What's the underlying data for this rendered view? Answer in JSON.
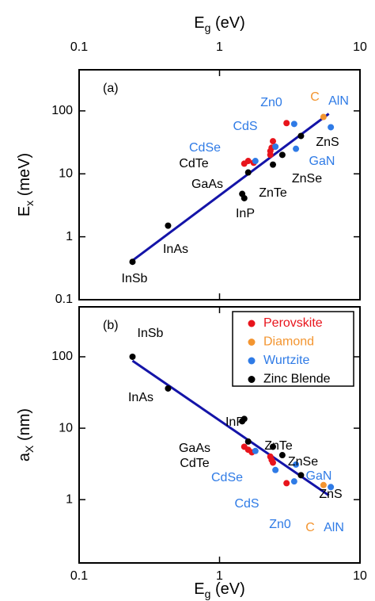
{
  "chart_data": [
    {
      "type": "scatter",
      "panel_label": "(a)",
      "xlabel": [
        "E",
        "g",
        " (eV)"
      ],
      "ylabel": [
        "E",
        "x",
        " (meV)"
      ],
      "log_x": true,
      "log_y": true,
      "xlim": [
        0.1,
        10
      ],
      "xticks": [
        0.1,
        1,
        10
      ],
      "ylim": [
        0.1,
        450
      ],
      "yticks": [
        0.1,
        1,
        10,
        100
      ],
      "series": [
        {
          "color": "#e8141c",
          "x": [
            1.5,
            1.6,
            1.75,
            2.3,
            2.3,
            2.35,
            2.4,
            3.0
          ],
          "values": [
            14.5,
            16,
            15,
            20,
            23,
            26,
            33,
            64
          ]
        },
        {
          "color": "#f39530",
          "x": [
            5.5
          ],
          "values": [
            80
          ]
        },
        {
          "color": "#2f7be6",
          "x": [
            1.8,
            2.5,
            3.4,
            3.5,
            6.2
          ],
          "values": [
            16,
            27,
            62,
            25,
            55
          ]
        },
        {
          "color": "#000000",
          "x": [
            0.24,
            0.43,
            1.45,
            1.5,
            1.6,
            2.4,
            2.8,
            3.8
          ],
          "values": [
            0.4,
            1.5,
            4.8,
            4.1,
            10.5,
            14,
            20,
            40
          ]
        }
      ],
      "fit": {
        "color": "#1414a8",
        "x": [
          0.24,
          6
        ],
        "values": [
          0.42,
          90
        ]
      },
      "annotations": [
        {
          "text": "InSb",
          "color": "#000000"
        },
        {
          "text": "InAs",
          "color": "#000000"
        },
        {
          "text": "InP",
          "color": "#000000"
        },
        {
          "text": "GaAs",
          "color": "#000000"
        },
        {
          "text": "CdTe",
          "color": "#000000"
        },
        {
          "text": "CdSe",
          "color": "#2f7be6"
        },
        {
          "text": "CdS",
          "color": "#2f7be6"
        },
        {
          "text": "Zn0",
          "color": "#2f7be6"
        },
        {
          "text": "C",
          "color": "#f39530"
        },
        {
          "text": "AlN",
          "color": "#2f7be6"
        },
        {
          "text": "ZnS",
          "color": "#000000"
        },
        {
          "text": "GaN",
          "color": "#2f7be6"
        },
        {
          "text": "ZnSe",
          "color": "#000000"
        },
        {
          "text": "ZnTe",
          "color": "#000000"
        }
      ]
    },
    {
      "type": "scatter",
      "panel_label": "(b)",
      "xlabel": [
        "E",
        "g",
        " (eV)"
      ],
      "ylabel": [
        "a",
        "X",
        " (nm)"
      ],
      "log_x": true,
      "log_y": true,
      "xlim": [
        0.1,
        10
      ],
      "xticks": [
        0.1,
        1,
        10
      ],
      "ylim": [
        0.13,
        500
      ],
      "yticks": [
        1,
        10,
        100
      ],
      "legend": "upper right",
      "series": [
        {
          "name": "Perovskite",
          "color": "#e8141c",
          "x": [
            1.5,
            1.6,
            1.7,
            2.3,
            2.35,
            2.4,
            3.0
          ],
          "values": [
            5.5,
            5,
            4.6,
            4,
            3.6,
            3.3,
            1.7
          ]
        },
        {
          "name": "Diamond",
          "color": "#f39530",
          "x": [
            5.5
          ],
          "values": [
            1.6
          ]
        },
        {
          "name": "Wurtzite",
          "color": "#2f7be6",
          "x": [
            1.8,
            2.5,
            3.4,
            3.5,
            6.2
          ],
          "values": [
            4.8,
            2.6,
            1.8,
            3.1,
            1.5
          ]
        },
        {
          "name": "Zinc Blende",
          "color": "#000000",
          "x": [
            0.24,
            0.43,
            1.45,
            1.5,
            1.6,
            2.4,
            2.8,
            3.8
          ],
          "values": [
            100,
            36,
            12.5,
            13.5,
            6.5,
            5.5,
            4.2,
            2.2
          ]
        }
      ],
      "fit": {
        "color": "#1414a8",
        "x": [
          0.24,
          6
        ],
        "values": [
          88,
          1.15
        ]
      },
      "annotations": [
        {
          "text": "InSb",
          "color": "#000000"
        },
        {
          "text": "InAs",
          "color": "#000000"
        },
        {
          "text": "InP",
          "color": "#000000"
        },
        {
          "text": "GaAs",
          "color": "#000000"
        },
        {
          "text": "ZnTe",
          "color": "#000000"
        },
        {
          "text": "CdTe",
          "color": "#000000"
        },
        {
          "text": "ZnSe",
          "color": "#000000"
        },
        {
          "text": "GaN",
          "color": "#2f7be6"
        },
        {
          "text": "CdSe",
          "color": "#2f7be6"
        },
        {
          "text": "ZnS",
          "color": "#000000"
        },
        {
          "text": "CdS",
          "color": "#2f7be6"
        },
        {
          "text": "Zn0",
          "color": "#2f7be6"
        },
        {
          "text": "C",
          "color": "#f39530"
        },
        {
          "text": "AlN",
          "color": "#2f7be6"
        }
      ]
    }
  ]
}
